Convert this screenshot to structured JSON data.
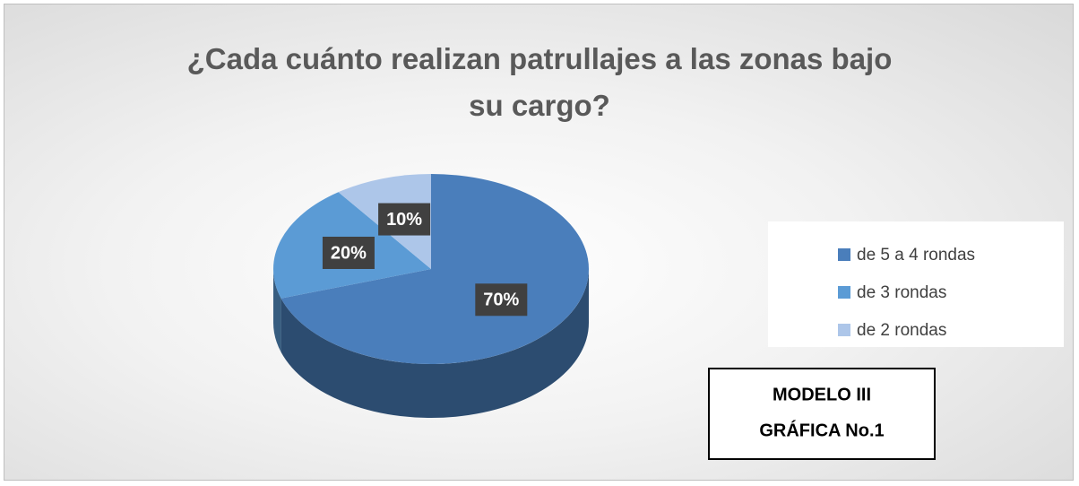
{
  "chart_data": {
    "type": "pie",
    "title": "¿Cada cuánto realizan patrullajes a las zonas bajo su cargo?",
    "categories": [
      "de 5 a 4 rondas",
      "de 3 rondas",
      "de 2 rondas"
    ],
    "values": [
      70,
      20,
      10
    ],
    "value_labels": [
      "70%",
      "20%",
      "10%"
    ],
    "colors": [
      "#4a7ebb",
      "#5b9bd5",
      "#adc6e9"
    ],
    "legend": "right",
    "annotation": [
      "MODELO III",
      "GRÁFICA No.1"
    ]
  }
}
